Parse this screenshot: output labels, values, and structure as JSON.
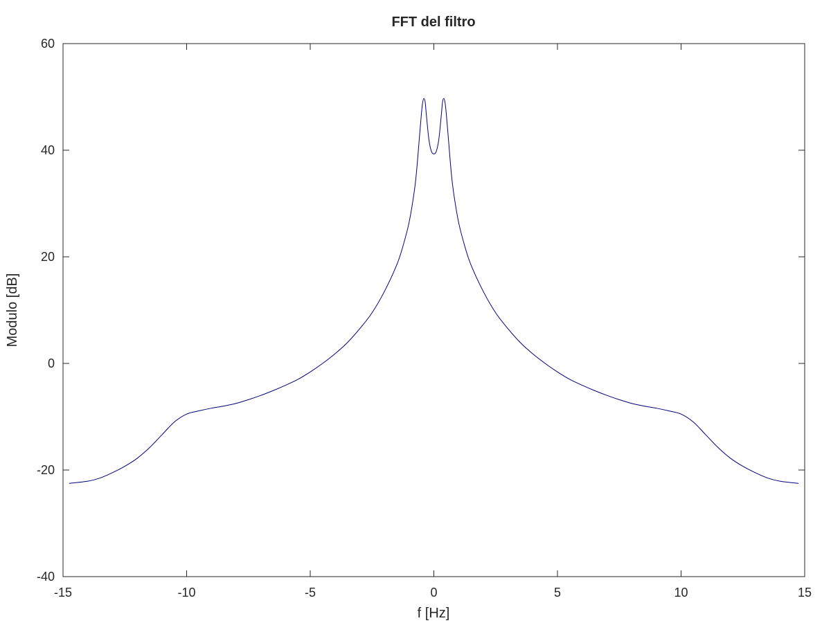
{
  "chart_data": {
    "type": "line",
    "title": "FFT del filtro",
    "xlabel": "f [Hz]",
    "ylabel": "Modulo [dB]",
    "xlim": [
      -15,
      15
    ],
    "ylim": [
      -40,
      60
    ],
    "xticks": [
      -15,
      -10,
      -5,
      0,
      5,
      10,
      15
    ],
    "yticks": [
      -40,
      -20,
      0,
      20,
      40,
      60
    ],
    "xtick_labels": [
      "-15",
      "-10",
      "-5",
      "0",
      "5",
      "10",
      "15"
    ],
    "ytick_labels": [
      "-40",
      "-20",
      "0",
      "20",
      "40",
      "60"
    ],
    "grid": false,
    "line_color": "#00007f",
    "series": [
      {
        "x": [
          -14.75,
          -14.0,
          -13.5,
          -13.0,
          -12.5,
          -12.0,
          -11.5,
          -11.0,
          -10.5,
          -10.0,
          -9.5,
          -9.0,
          -8.5,
          -8.0,
          -7.5,
          -7.0,
          -6.5,
          -6.0,
          -5.5,
          -5.0,
          -4.5,
          -4.0,
          -3.5,
          -3.0,
          -2.5,
          -2.0,
          -1.5,
          -1.25,
          -1.0,
          -0.8,
          -0.7,
          -0.6,
          -0.5,
          -0.45,
          -0.4,
          -0.35,
          -0.3,
          -0.2,
          -0.1,
          0.0,
          0.1,
          0.2,
          0.3,
          0.35,
          0.4,
          0.45,
          0.5,
          0.6,
          0.7,
          0.8,
          1.0,
          1.25,
          1.5,
          2.0,
          2.5,
          3.0,
          3.5,
          4.0,
          4.5,
          5.0,
          5.5,
          6.0,
          6.5,
          7.0,
          7.5,
          8.0,
          8.5,
          9.0,
          9.5,
          10.0,
          10.5,
          11.0,
          11.5,
          12.0,
          12.5,
          13.0,
          13.5,
          14.0,
          14.75
        ],
        "y": [
          -22.5,
          -22.1,
          -21.5,
          -20.5,
          -19.3,
          -17.8,
          -15.8,
          -13.4,
          -11.0,
          -9.5,
          -8.9,
          -8.4,
          -8.0,
          -7.5,
          -6.8,
          -6.0,
          -5.1,
          -4.1,
          -3.0,
          -1.6,
          0.0,
          1.8,
          3.9,
          6.5,
          9.5,
          13.5,
          18.5,
          22.0,
          26.5,
          32.0,
          36.0,
          41.5,
          47.0,
          49.0,
          49.7,
          49.0,
          46.5,
          42.0,
          39.8,
          39.3,
          39.8,
          42.0,
          46.5,
          49.0,
          49.7,
          49.0,
          47.0,
          41.5,
          36.0,
          32.0,
          26.5,
          22.0,
          18.5,
          13.5,
          9.5,
          6.5,
          3.9,
          1.8,
          0.0,
          -1.6,
          -3.0,
          -4.1,
          -5.1,
          -6.0,
          -6.8,
          -7.5,
          -8.0,
          -8.4,
          -8.9,
          -9.5,
          -11.0,
          -13.4,
          -15.8,
          -17.8,
          -19.3,
          -20.5,
          -21.5,
          -22.1,
          -22.5
        ]
      }
    ]
  }
}
